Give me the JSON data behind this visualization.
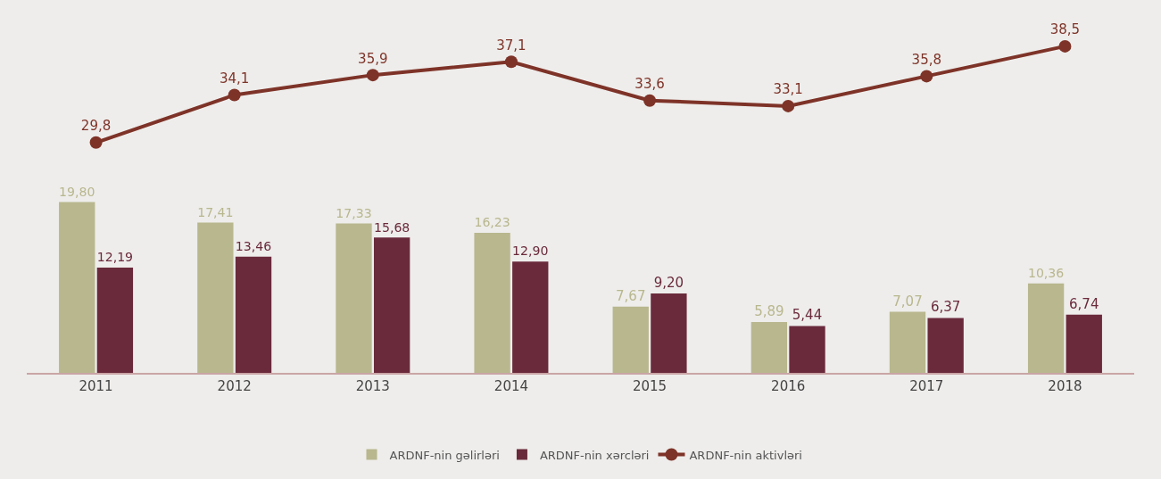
{
  "chart_data": [
    {
      "type": "line",
      "categories": [
        "2011",
        "2012",
        "2013",
        "2014",
        "2015",
        "2016",
        "2017",
        "2018"
      ],
      "tick_labels": false,
      "grid": false,
      "legend": "bottom",
      "marker": "circle",
      "series": [
        {
          "name": "ARDNF-nin aktivləri",
          "color": "#7e3328",
          "values": [
            29.8,
            34.1,
            35.9,
            37.1,
            33.6,
            33.1,
            35.8,
            38.5
          ],
          "value_labels": [
            "29,8",
            "34,1",
            "35,9",
            "37,1",
            "33,6",
            "33,1",
            "35,8",
            "38,5"
          ]
        }
      ]
    },
    {
      "type": "bar",
      "categories": [
        "2011",
        "2012",
        "2013",
        "2014",
        "2015",
        "2016",
        "2017",
        "2018"
      ],
      "tick_labels": "x",
      "grid": false,
      "legend": "bottom",
      "series": [
        {
          "name": "ARDNF-nin gəlirləri",
          "color": "#b8b78e",
          "values": [
            19.8,
            17.41,
            17.33,
            16.23,
            7.67,
            5.89,
            7.07,
            10.36
          ],
          "value_labels": [
            "19,80",
            "17,41",
            "17,33",
            "16,23",
            "7,67",
            "5,89",
            "7,07",
            "10,36"
          ]
        },
        {
          "name": "ARDNF-nin xərcləri",
          "color": "#6a2a3c",
          "values": [
            12.19,
            13.46,
            15.68,
            12.9,
            9.2,
            5.44,
            6.37,
            6.74
          ],
          "value_labels": [
            "12,19",
            "13,46",
            "15,68",
            "12,90",
            "9,20",
            "5,44",
            "6,37",
            "6,74"
          ]
        }
      ]
    }
  ]
}
